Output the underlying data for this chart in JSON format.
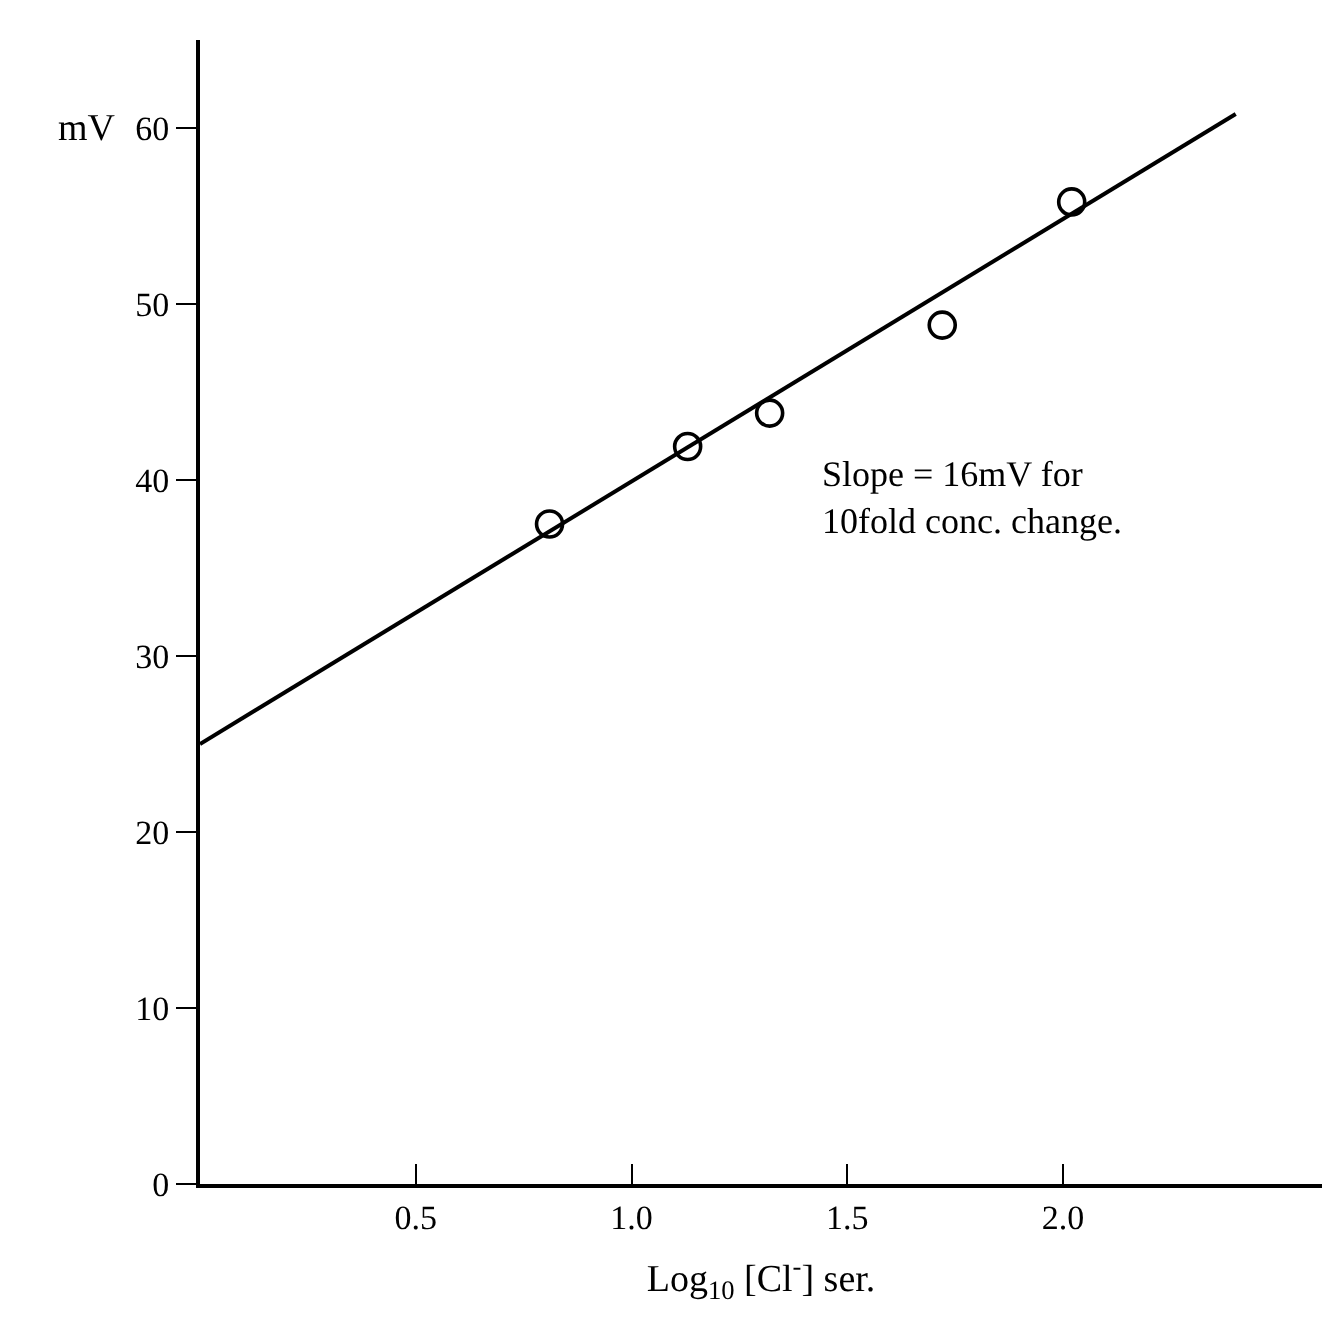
{
  "chart_data": {
    "type": "scatter",
    "xlabel": "Log$_{10}$ [Cl$^{-}$] ser.",
    "ylabel": "mV",
    "xlim": [
      0,
      2.6
    ],
    "ylim": [
      0,
      65
    ],
    "xticks": [
      {
        "value": 0.5,
        "label": "0.5"
      },
      {
        "value": 1.0,
        "label": "1.0"
      },
      {
        "value": 1.5,
        "label": "1.5"
      },
      {
        "value": 2.0,
        "label": "2.0"
      }
    ],
    "yticks": [
      0,
      10,
      20,
      30,
      40,
      50,
      60
    ],
    "series": [
      {
        "marker": "circle",
        "color": "#000000",
        "x": [
          0.81,
          1.13,
          1.32,
          1.72,
          2.02
        ],
        "values": [
          37.5,
          41.9,
          43.8,
          48.8,
          55.8
        ]
      },
      {
        "type": "line",
        "marker": "none",
        "line_style": "solid",
        "color": "#000000",
        "x": [
          0,
          2.4
        ],
        "values": [
          25.0,
          60.8
        ]
      }
    ],
    "annotations": [
      "Slope = 16mV for\n10fold conc. change."
    ]
  }
}
